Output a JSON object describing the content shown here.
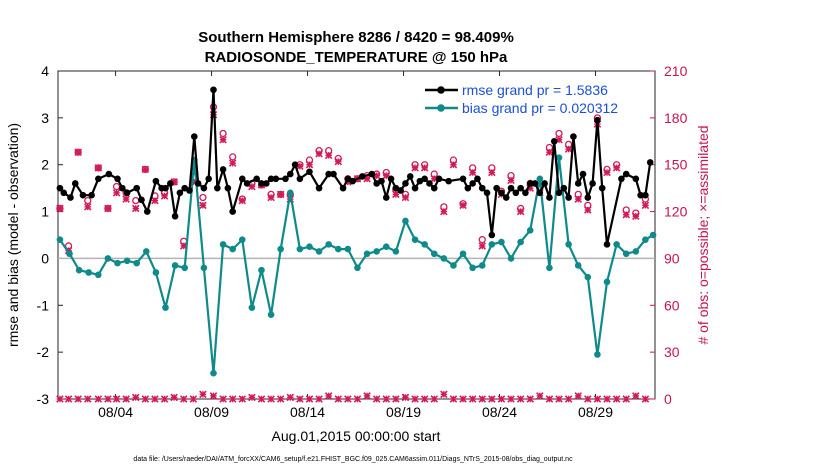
{
  "chart_data": {
    "type": "line",
    "title": "Southern Hemisphere 8286 / 8420 = 98.409%",
    "subtitle": "RADIOSONDE_TEMPERATURE @ 150 hPa",
    "xlabel": "Aug.01,2015 00:00:00 start",
    "ylabel": "rmse and bias (model - observation)",
    "ylabel_right": "# of obs: o=possible; ×=assimilated",
    "footer": "data file: /Users/raeder/DAI/ATM_forcXX/CAM6_setup/f.e21.FHIST_BGC.f09_025.CAM6assim.011/Diags_NTrS_2015-08/obs_diag_output.nc",
    "xlim": [
      1.0,
      32.1
    ],
    "ylim": [
      -3,
      4
    ],
    "ylim_right": [
      0,
      210
    ],
    "xticks": [
      4,
      9,
      14,
      19,
      24,
      29
    ],
    "xtick_labels": [
      "08/04",
      "08/09",
      "08/14",
      "08/19",
      "08/24",
      "08/29"
    ],
    "yticks": [
      -3,
      -2,
      -1,
      0,
      1,
      2,
      3,
      4
    ],
    "yticks_right": [
      0,
      30,
      60,
      90,
      120,
      150,
      180,
      210
    ],
    "zero_line": 0,
    "legend_position": "top-right",
    "colors": {
      "rmse": "#000000",
      "bias": "#0f8a8a",
      "obs": "#d21a55",
      "zero": "#b4b4b4",
      "legend_text": "#1a4fd6"
    },
    "series": [
      {
        "name": "rmse grand pr = 1.5836",
        "x": [
          1.1,
          1.3,
          1.65,
          1.9,
          2.3,
          2.75,
          3.1,
          3.65,
          4.1,
          4.35,
          4.6,
          5.1,
          5.35,
          5.65,
          6.1,
          6.4,
          6.6,
          6.85,
          7.1,
          7.35,
          7.6,
          7.85,
          8.1,
          8.3,
          8.6,
          8.85,
          9.1,
          9.3,
          9.6,
          9.85,
          10.1,
          10.6,
          10.85,
          11.35,
          11.6,
          11.85,
          12.1,
          12.35,
          12.85,
          13.1,
          13.35,
          13.6,
          14.1,
          14.6,
          15.1,
          15.35,
          15.85,
          16.1,
          16.35,
          16.85,
          17.35,
          17.6,
          17.85,
          18.1,
          18.35,
          18.6,
          18.85,
          19.1,
          19.35,
          19.6,
          19.85,
          20.1,
          20.35,
          20.6,
          20.85,
          21.35,
          22.1,
          22.35,
          22.6,
          22.85,
          23.1,
          23.35,
          23.6,
          23.85,
          24.1,
          24.35,
          24.6,
          24.85,
          25.1,
          25.35,
          25.6,
          25.85,
          26.1,
          26.35,
          26.6,
          26.85,
          27.1,
          27.35,
          27.6,
          27.85,
          28.1,
          28.35,
          28.6,
          28.85,
          29.1,
          29.35,
          29.6,
          30.35,
          30.6,
          31.1,
          31.35,
          31.6,
          31.85
        ],
        "y": [
          1.5,
          1.4,
          1.3,
          1.6,
          1.35,
          1.35,
          1.7,
          1.8,
          1.7,
          1.5,
          1.4,
          1.5,
          1.25,
          1.0,
          1.65,
          1.5,
          1.5,
          1.6,
          0.9,
          1.4,
          1.5,
          1.45,
          2.6,
          1.6,
          1.5,
          1.7,
          3.6,
          1.5,
          1.9,
          1.5,
          1.0,
          1.7,
          1.6,
          1.7,
          1.6,
          1.6,
          1.7,
          1.7,
          1.7,
          1.8,
          2.0,
          1.7,
          1.85,
          1.5,
          1.8,
          1.8,
          1.5,
          1.7,
          1.65,
          1.75,
          1.8,
          1.6,
          1.65,
          1.3,
          1.7,
          1.5,
          1.45,
          1.6,
          1.75,
          1.5,
          1.65,
          1.7,
          1.6,
          1.5,
          1.7,
          1.65,
          1.7,
          1.5,
          1.6,
          1.7,
          1.5,
          1.4,
          0.5,
          1.5,
          1.4,
          1.3,
          1.5,
          1.4,
          1.5,
          1.4,
          1.6,
          1.6,
          1.4,
          1.6,
          1.3,
          2.5,
          1.4,
          1.5,
          1.3,
          2.6,
          1.6,
          1.8,
          1.3,
          1.6,
          2.95,
          1.5,
          0.3,
          1.7,
          1.8,
          1.7,
          1.35,
          1.35,
          2.05
        ]
      },
      {
        "name": "bias grand pr = 0.020312",
        "x": [
          1.1,
          1.6,
          2.1,
          2.6,
          3.1,
          3.6,
          4.1,
          4.6,
          5.1,
          5.6,
          6.1,
          6.6,
          7.1,
          7.6,
          8.1,
          8.6,
          9.1,
          9.6,
          10.1,
          10.6,
          11.1,
          11.6,
          12.1,
          12.6,
          13.1,
          13.6,
          14.1,
          14.6,
          15.1,
          15.6,
          16.1,
          16.6,
          17.1,
          17.6,
          18.1,
          18.6,
          19.1,
          19.6,
          20.1,
          20.6,
          21.1,
          21.6,
          22.1,
          22.6,
          23.1,
          23.6,
          24.1,
          24.6,
          25.1,
          25.6,
          26.1,
          26.6,
          27.1,
          27.6,
          28.1,
          28.6,
          29.1,
          29.6,
          30.1,
          30.6,
          31.1,
          31.6,
          32.0
        ],
        "y": [
          0.4,
          0.1,
          -0.25,
          -0.3,
          -0.35,
          0.0,
          -0.1,
          -0.05,
          -0.1,
          0.15,
          -0.3,
          -1.05,
          -0.15,
          -0.2,
          2.1,
          -0.2,
          -2.45,
          0.3,
          0.2,
          0.4,
          -1.05,
          -0.25,
          -1.2,
          0.2,
          1.4,
          0.2,
          0.25,
          0.15,
          0.3,
          0.2,
          0.2,
          -0.2,
          0.1,
          0.15,
          0.25,
          0.15,
          0.8,
          0.4,
          0.3,
          0.1,
          0.0,
          -0.15,
          0.1,
          -0.2,
          -0.15,
          0.3,
          0.35,
          0.0,
          0.35,
          0.6,
          1.7,
          -0.2,
          2.15,
          0.3,
          -0.15,
          -0.4,
          -2.05,
          -0.5,
          0.3,
          0.1,
          0.15,
          0.4,
          0.5
        ]
      },
      {
        "name": "obs possible",
        "axis": "right",
        "marker": "o",
        "x": [
          1.1,
          1.55,
          2.05,
          2.55,
          3.1,
          3.6,
          4.05,
          4.55,
          5.05,
          5.55,
          6.05,
          6.55,
          7.05,
          7.55,
          8.05,
          8.55,
          9.1,
          9.6,
          10.1,
          10.6,
          11.1,
          11.6,
          12.1,
          12.6,
          13.1,
          13.6,
          14.1,
          14.6,
          15.1,
          15.6,
          16.1,
          16.6,
          17.1,
          17.6,
          18.1,
          18.6,
          19.1,
          19.6,
          20.1,
          20.6,
          21.1,
          21.6,
          22.1,
          22.6,
          23.1,
          23.6,
          24.1,
          24.6,
          25.1,
          25.6,
          26.1,
          26.6,
          27.1,
          27.6,
          28.1,
          28.6,
          29.1,
          29.6,
          30.1,
          30.6,
          31.1,
          31.6
        ],
        "y": [
          122,
          98,
          158,
          127,
          148,
          122,
          136,
          132,
          127,
          147,
          130,
          132,
          139,
          101,
          142,
          129,
          187,
          170,
          155,
          128,
          138,
          137,
          131,
          131,
          131,
          150,
          153,
          159,
          159,
          154,
          141,
          141,
          143,
          144,
          145,
          134,
          131,
          150,
          150,
          144,
          123,
          153,
          125,
          148,
          102,
          148,
          133,
          143,
          122,
          138,
          135,
          161,
          170,
          163,
          131,
          124,
          180,
          147,
          150,
          121,
          119,
          128
        ]
      },
      {
        "name": "obs assimilated",
        "axis": "right",
        "marker": "x",
        "x": [
          1.1,
          1.55,
          2.05,
          2.55,
          3.1,
          3.6,
          4.05,
          4.55,
          5.05,
          5.55,
          6.05,
          6.55,
          7.05,
          7.55,
          8.05,
          8.55,
          9.1,
          9.6,
          10.1,
          10.6,
          11.1,
          11.6,
          12.1,
          12.6,
          13.1,
          13.6,
          14.1,
          14.6,
          15.1,
          15.6,
          16.1,
          16.6,
          17.1,
          17.6,
          18.1,
          18.6,
          19.1,
          19.6,
          20.1,
          20.6,
          21.1,
          21.6,
          22.1,
          22.6,
          23.1,
          23.6,
          24.1,
          24.6,
          25.1,
          25.6,
          26.1,
          26.6,
          27.1,
          27.6,
          28.1,
          28.6,
          29.1,
          29.6,
          30.1,
          30.6,
          31.1,
          31.6
        ],
        "y": [
          122,
          95,
          158,
          123,
          148,
          122,
          132,
          128,
          122,
          147,
          127,
          130,
          139,
          98,
          139,
          124,
          182,
          166,
          151,
          127,
          136,
          137,
          129,
          131,
          128,
          149,
          150,
          157,
          156,
          152,
          139,
          141,
          141,
          143,
          143,
          131,
          129,
          148,
          148,
          141,
          120,
          150,
          124,
          145,
          98,
          145,
          131,
          140,
          120,
          135,
          132,
          158,
          166,
          160,
          128,
          121,
          176,
          145,
          148,
          118,
          117,
          124
        ]
      },
      {
        "name": "obs baseline markers",
        "axis": "right",
        "marker": "x",
        "x": [
          1.1,
          1.55,
          2.05,
          2.55,
          3.1,
          3.6,
          4.05,
          4.55,
          5.05,
          5.55,
          6.05,
          6.55,
          7.05,
          7.55,
          8.05,
          8.55,
          9.1,
          9.6,
          10.1,
          10.6,
          11.1,
          11.6,
          12.1,
          12.6,
          13.1,
          13.6,
          14.1,
          14.6,
          15.1,
          15.6,
          16.1,
          16.6,
          17.1,
          17.6,
          18.1,
          18.6,
          19.1,
          19.6,
          20.1,
          20.6,
          21.1,
          21.6,
          22.1,
          22.6,
          23.1,
          23.6,
          24.1,
          24.6,
          25.1,
          25.6,
          26.1,
          26.6,
          27.1,
          27.6,
          28.1,
          28.6,
          29.1,
          29.6,
          30.1,
          30.6,
          31.1,
          31.6
        ],
        "y": [
          0,
          0,
          0,
          0,
          0,
          0,
          0,
          0,
          1,
          0,
          0,
          0,
          1,
          0,
          0,
          3,
          2,
          0,
          0,
          0,
          1,
          0,
          0,
          0,
          1,
          0,
          0,
          0,
          2,
          0,
          0,
          0,
          2,
          0,
          0,
          0,
          1,
          0,
          0,
          0,
          3,
          0,
          0,
          0,
          0,
          0,
          0,
          0,
          0,
          0,
          2,
          0,
          0,
          0,
          2,
          0,
          0,
          0,
          0,
          0,
          2,
          0
        ]
      }
    ]
  }
}
